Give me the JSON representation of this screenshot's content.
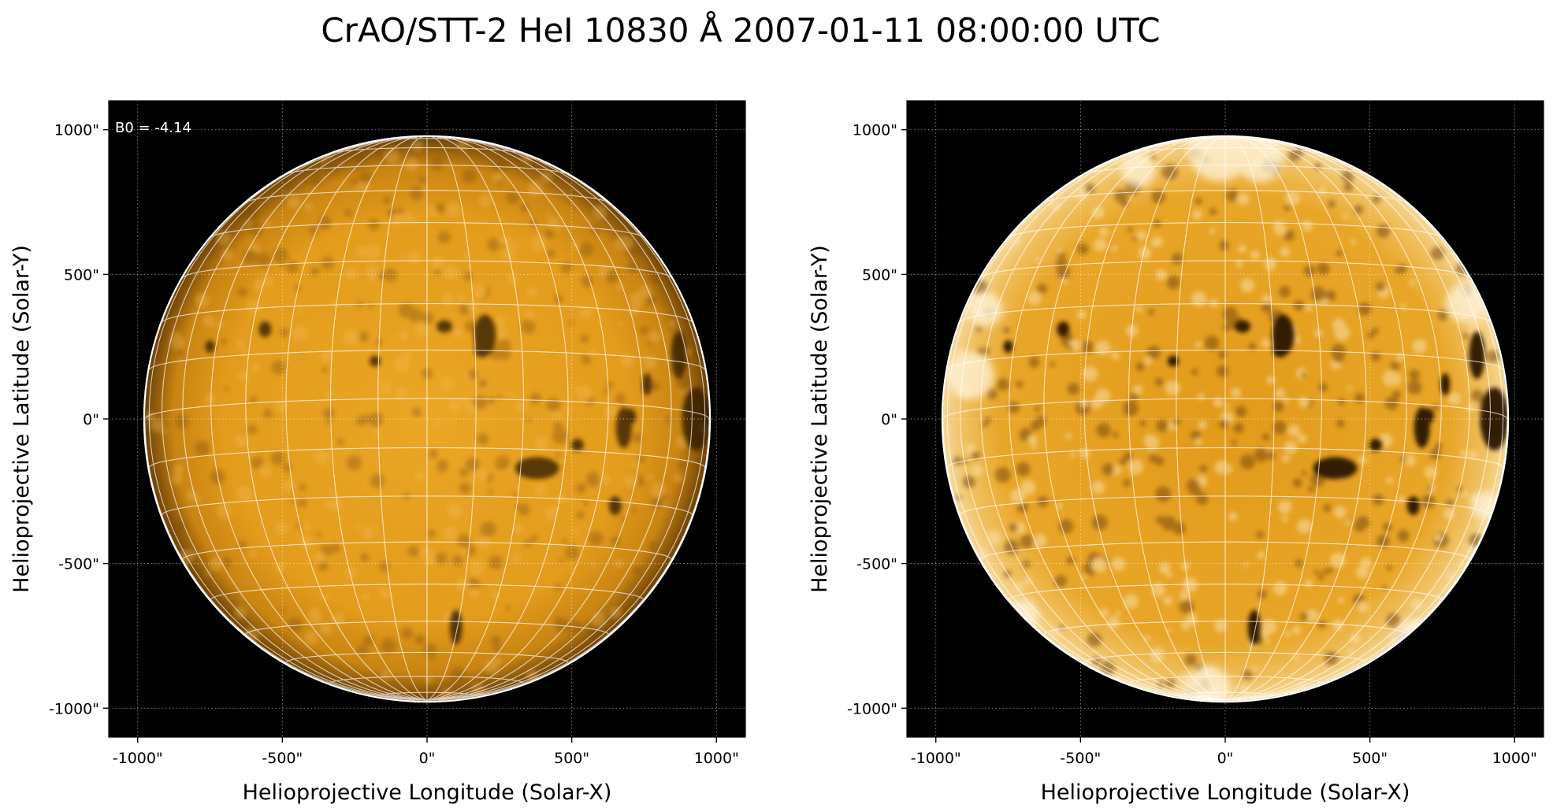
{
  "figure": {
    "title": "CrAO/STT-2 HeI 10830 Å 2007-01-11 08:00:00 UTC",
    "colors": {
      "background": "#000000",
      "disk": "#e8a120",
      "limb": "#7a4a08",
      "grid": "#ffffff"
    }
  },
  "panels": [
    {
      "id": "left",
      "annotation": "B0 = -4.14",
      "xlabel": "Helioprojective Longitude (Solar-X)",
      "ylabel": "Helioprojective Latitude (Solar-Y)",
      "xticks": [
        "-1000\"",
        "-500\"",
        "0\"",
        "500\"",
        "1000\""
      ],
      "yticks": [
        "1000\"",
        "500\"",
        "0\"",
        "-500\"",
        "-1000\""
      ],
      "enhanced": false
    },
    {
      "id": "right",
      "annotation": "",
      "xlabel": "Helioprojective Longitude (Solar-X)",
      "ylabel": "Helioprojective Latitude (Solar-Y)",
      "xticks": [
        "-1000\"",
        "-500\"",
        "0\"",
        "500\"",
        "1000\""
      ],
      "yticks": [
        "1000\"",
        "500\"",
        "0\"",
        "-500\"",
        "-1000\""
      ],
      "enhanced": true
    }
  ]
}
